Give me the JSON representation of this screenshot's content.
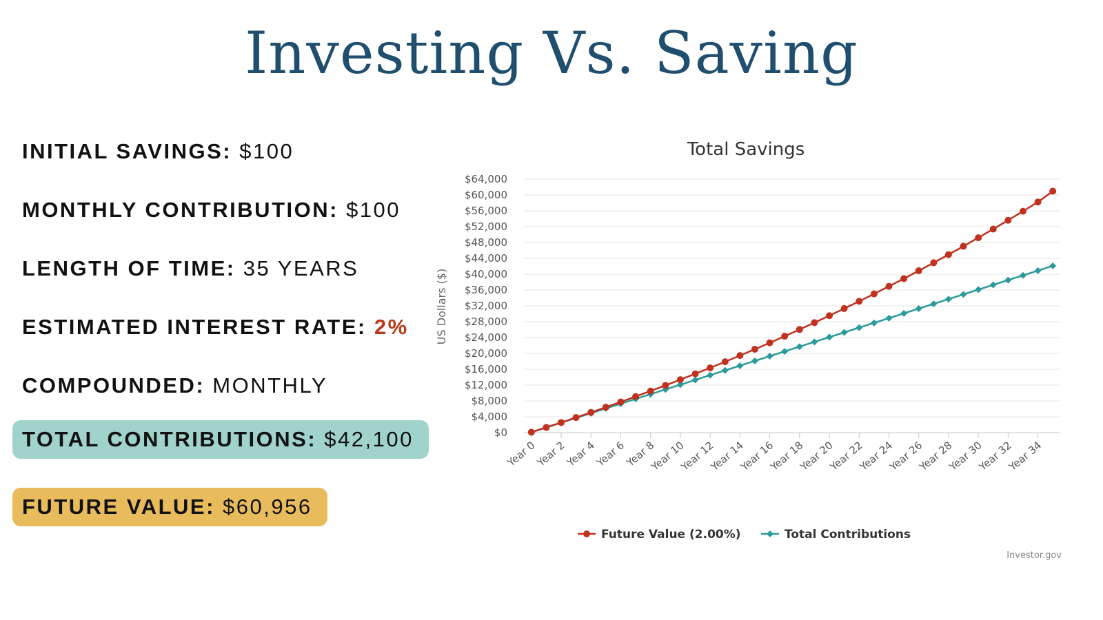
{
  "title": "Investing Vs. Saving",
  "stats": {
    "initial_savings": {
      "label": "INITIAL SAVINGS:",
      "value": "$100"
    },
    "monthly_contribution": {
      "label": "MONTHLY CONTRIBUTION:",
      "value": "$100"
    },
    "length_of_time": {
      "label": "LENGTH OF TIME:",
      "value": "35 YEARS"
    },
    "interest_rate": {
      "label": "ESTIMATED INTEREST RATE:",
      "value": "2%"
    },
    "compounded": {
      "label": "COMPOUNDED:",
      "value": "MONTHLY"
    },
    "total_contributions": {
      "label": "TOTAL CONTRIBUTIONS:",
      "value": "$42,100"
    },
    "future_value": {
      "label": "FUTURE VALUE:",
      "value": "$60,956"
    }
  },
  "colors": {
    "title": "#1f4e6e",
    "accent_red": "#b53a1c",
    "teal_pill": "#9fd3cb",
    "gold_pill": "#e8bb5c",
    "series_future": "#c0311f",
    "series_contrib": "#2b9a9a"
  },
  "chart_data": {
    "type": "line",
    "title": "Total Savings",
    "xlabel": "",
    "ylabel": "US Dollars ($)",
    "ylim": [
      0,
      64000
    ],
    "y_ticks": [
      "$0",
      "$4,000",
      "$8,000",
      "$12,000",
      "$16,000",
      "$20,000",
      "$24,000",
      "$28,000",
      "$32,000",
      "$36,000",
      "$40,000",
      "$44,000",
      "$48,000",
      "$52,000",
      "$56,000",
      "$60,000",
      "$64,000"
    ],
    "categories": [
      "Year 0",
      "Year 1",
      "Year 2",
      "Year 3",
      "Year 4",
      "Year 5",
      "Year 6",
      "Year 7",
      "Year 8",
      "Year 9",
      "Year 10",
      "Year 11",
      "Year 12",
      "Year 13",
      "Year 14",
      "Year 15",
      "Year 16",
      "Year 17",
      "Year 18",
      "Year 19",
      "Year 20",
      "Year 21",
      "Year 22",
      "Year 23",
      "Year 24",
      "Year 25",
      "Year 26",
      "Year 27",
      "Year 28",
      "Year 29",
      "Year 30",
      "Year 31",
      "Year 32",
      "Year 33",
      "Year 34",
      "Year 35"
    ],
    "x_tick_labels": [
      "Year 0",
      "Year 2",
      "Year 4",
      "Year 6",
      "Year 8",
      "Year 10",
      "Year 12",
      "Year 14",
      "Year 16",
      "Year 18",
      "Year 20",
      "Year 22",
      "Year 24",
      "Year 26",
      "Year 28",
      "Year 30",
      "Year 32",
      "Year 34"
    ],
    "series": [
      {
        "name": "Future Value (2.00%)",
        "marker": "circle",
        "values": [
          100,
          1313,
          2551,
          3812,
          5099,
          6411,
          7748,
          9113,
          10504,
          11923,
          13370,
          14846,
          16352,
          17887,
          19453,
          21050,
          22679,
          24340,
          26034,
          27762,
          29524,
          31321,
          33154,
          35024,
          36931,
          38876,
          40859,
          42882,
          44945,
          47049,
          49195,
          51384,
          53617,
          55894,
          58216,
          60956
        ]
      },
      {
        "name": "Total Contributions",
        "marker": "diamond",
        "values": [
          100,
          1300,
          2500,
          3700,
          4900,
          6100,
          7300,
          8500,
          9700,
          10900,
          12100,
          13300,
          14500,
          15700,
          16900,
          18100,
          19300,
          20500,
          21700,
          22900,
          24100,
          25300,
          26500,
          27700,
          28900,
          30100,
          31300,
          32500,
          33700,
          34900,
          36100,
          37300,
          38500,
          39700,
          40900,
          42100
        ]
      }
    ],
    "grid": true,
    "legend_position": "bottom-center",
    "credit": "Investor.gov"
  }
}
